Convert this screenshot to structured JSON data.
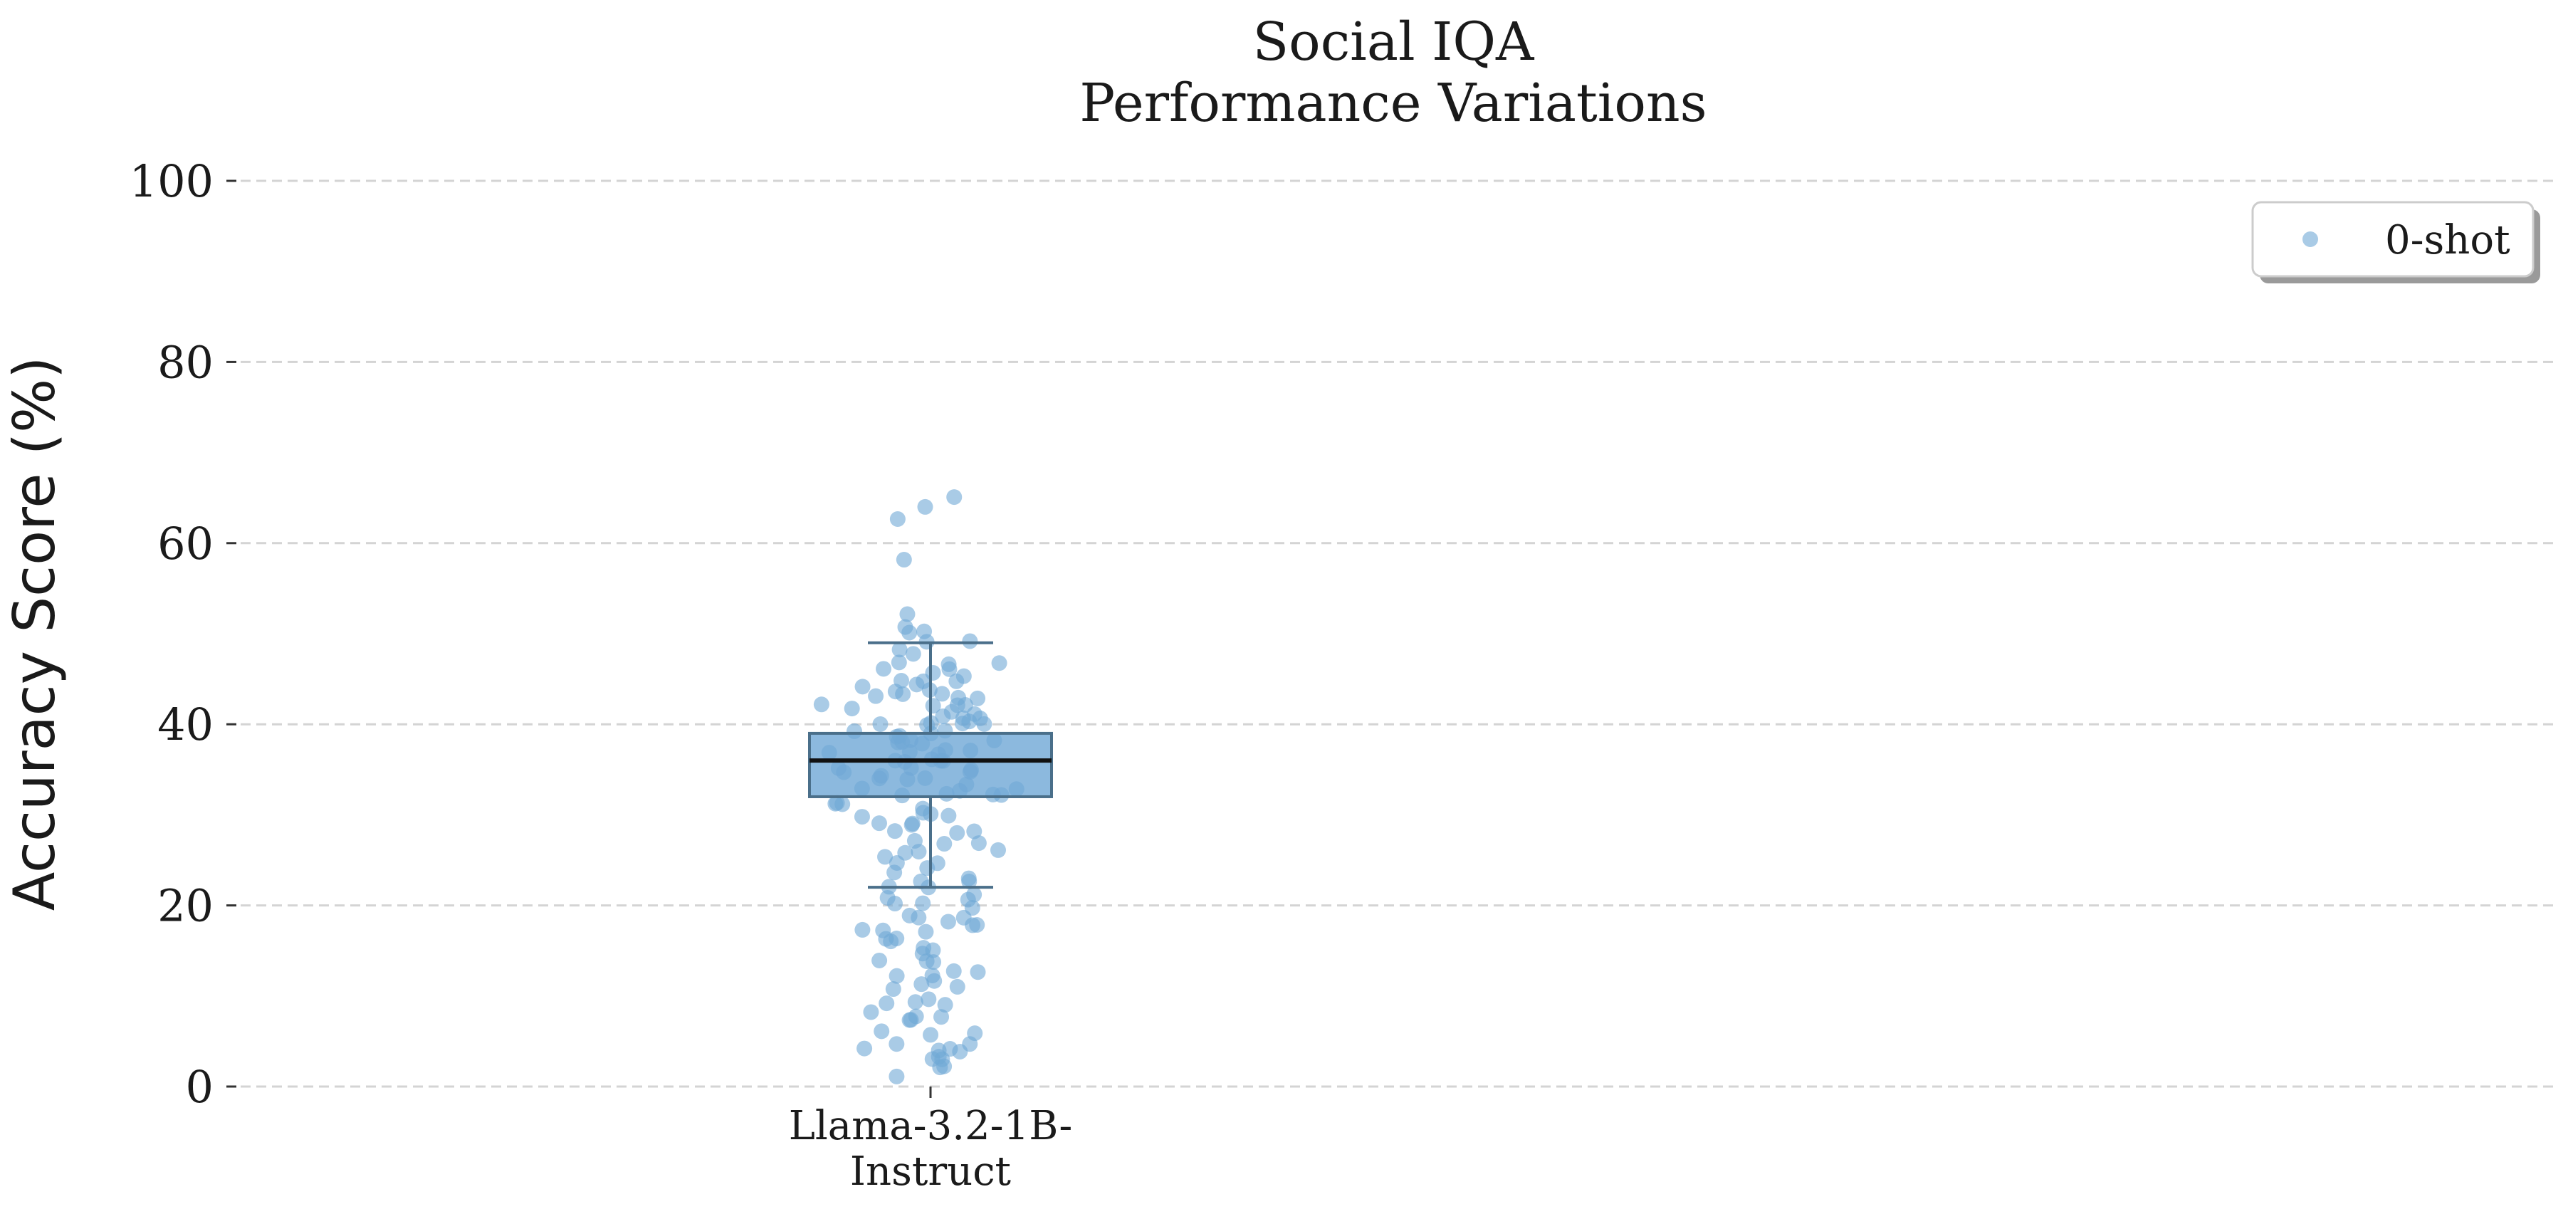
{
  "chart_data": {
    "type": "box",
    "title_lines": [
      "Social IQA",
      "Performance Variations"
    ],
    "ylabel": "Accuracy Score (%)",
    "xlabel": "",
    "ylim": [
      0,
      100
    ],
    "yticks": [
      0,
      20,
      40,
      60,
      80,
      100
    ],
    "grid": "horizontal dashed",
    "legend": {
      "position": "top-right",
      "entries": [
        "0-shot"
      ]
    },
    "categories": [
      "Llama-3.2-1B-Instruct"
    ],
    "category_label_lines": [
      "Llama-3.2-1B-",
      "Instruct"
    ],
    "series": [
      {
        "name": "0-shot",
        "color": "#6fa8d6",
        "box": {
          "whisker_low": 22,
          "q1": 32,
          "median": 36,
          "q3": 39,
          "whisker_high": 49
        },
        "points": [
          65,
          64,
          63,
          58,
          52,
          51,
          50,
          50,
          49,
          49,
          48,
          48,
          47,
          47,
          47,
          46,
          46,
          46,
          45,
          45,
          45,
          45,
          44,
          44,
          44,
          44,
          43,
          43,
          43,
          43,
          43,
          42,
          42,
          42,
          42,
          42,
          41,
          41,
          41,
          41,
          41,
          40,
          40,
          40,
          40,
          40,
          40,
          39,
          39,
          39,
          39,
          39,
          38,
          38,
          38,
          38,
          38,
          37,
          37,
          37,
          37,
          37,
          36,
          36,
          36,
          36,
          36,
          35,
          35,
          35,
          35,
          35,
          34,
          34,
          34,
          34,
          33,
          33,
          33,
          33,
          32,
          32,
          32,
          32,
          31,
          31,
          31,
          31,
          30,
          30,
          30,
          30,
          29,
          29,
          29,
          28,
          28,
          28,
          27,
          27,
          27,
          26,
          26,
          26,
          25,
          25,
          25,
          24,
          24,
          23,
          23,
          23,
          22,
          22,
          21,
          21,
          21,
          20,
          20,
          20,
          19,
          19,
          19,
          18,
          18,
          18,
          17,
          17,
          17,
          16,
          16,
          16,
          15,
          15,
          15,
          14,
          14,
          14,
          13,
          13,
          12,
          12,
          12,
          11,
          11,
          11,
          10,
          9,
          9,
          9,
          8,
          8,
          8,
          7,
          7,
          6,
          6,
          6,
          5,
          5,
          4,
          4,
          4,
          4,
          3,
          3,
          3,
          2,
          2,
          1
        ]
      }
    ]
  }
}
